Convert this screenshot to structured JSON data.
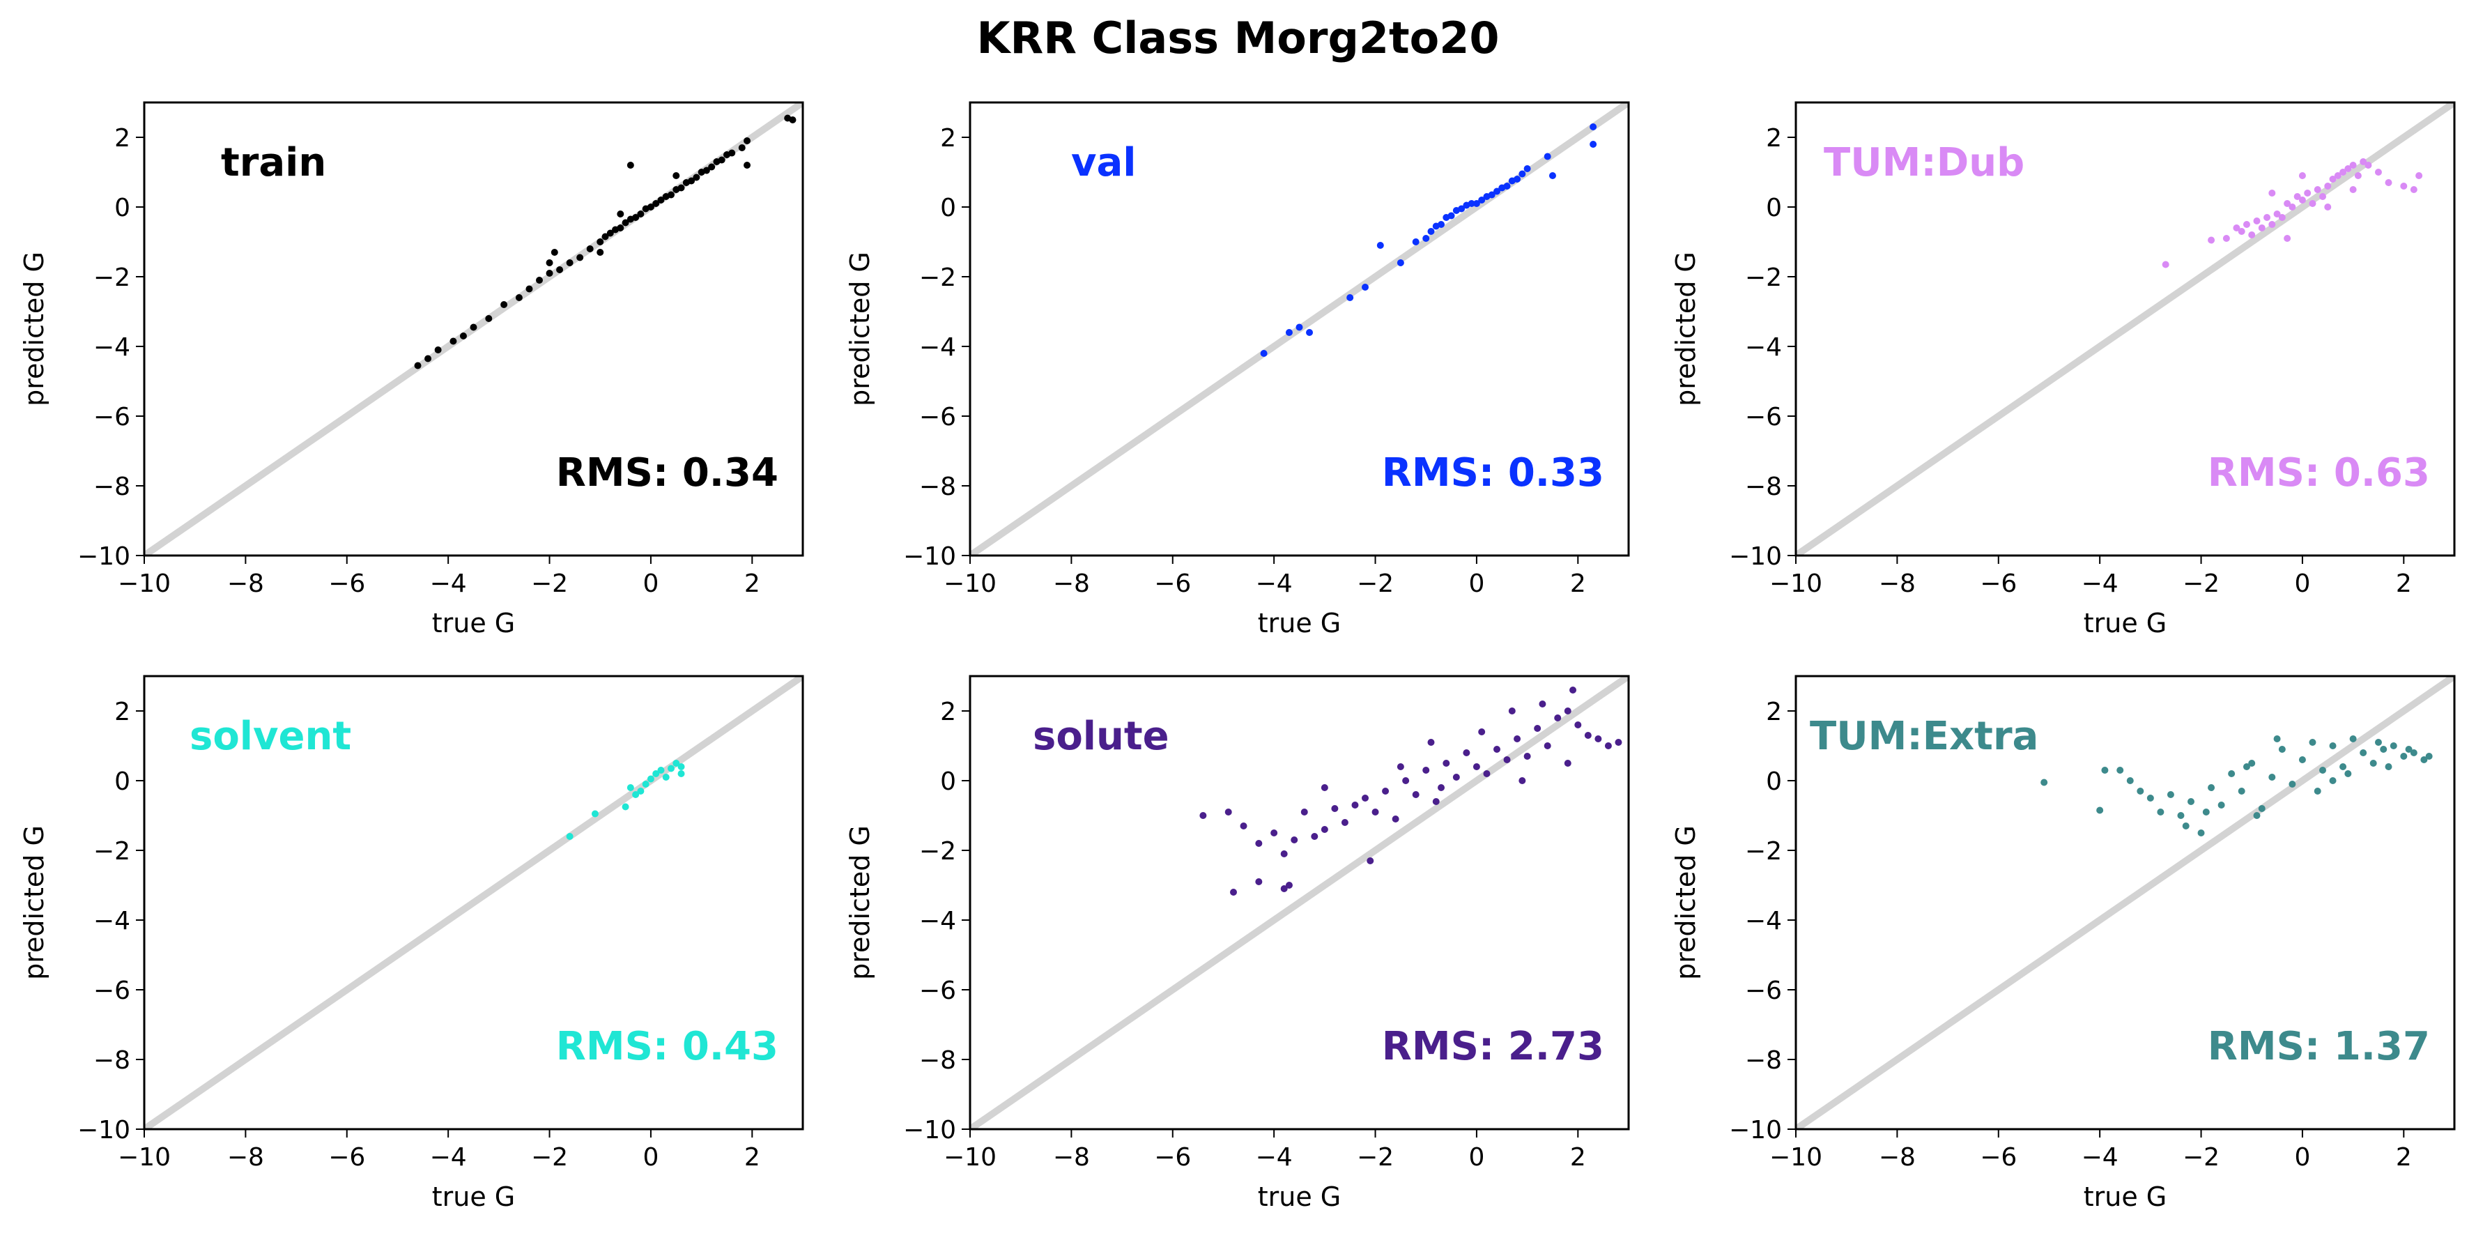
{
  "figure": {
    "title": "KRR Class Morg2to20"
  },
  "chart_data": [
    {
      "type": "scatter",
      "panel": "train",
      "color": "#000000",
      "rms": "RMS: 0.34",
      "xlabel": "true G",
      "ylabel": "predicted G",
      "xlim": [
        -10,
        3
      ],
      "ylim": [
        -10,
        3
      ],
      "x_ticks": [
        -10,
        -8,
        -6,
        -4,
        -2,
        0,
        2
      ],
      "y_ticks": [
        -10,
        -8,
        -6,
        -4,
        -2,
        0,
        2
      ],
      "reference_line": "y = x",
      "x": [
        -4.6,
        -4.4,
        -4.2,
        -3.9,
        -3.7,
        -3.5,
        -3.2,
        -2.9,
        -2.6,
        -2.4,
        -2.2,
        -2.0,
        -1.8,
        -1.6,
        -1.4,
        -1.2,
        -1.0,
        -0.9,
        -0.8,
        -0.7,
        -0.6,
        -0.5,
        -0.4,
        -0.3,
        -0.2,
        -0.1,
        0.0,
        0.1,
        0.2,
        0.3,
        0.4,
        0.5,
        0.6,
        0.7,
        0.8,
        0.9,
        1.0,
        1.1,
        1.2,
        1.3,
        1.4,
        1.5,
        1.6,
        1.8,
        1.9,
        -1.9,
        -0.4,
        0.5,
        -0.6,
        2.7,
        2.8,
        -1.0,
        1.9,
        -2.0
      ],
      "y": [
        -4.55,
        -4.35,
        -4.1,
        -3.85,
        -3.7,
        -3.45,
        -3.2,
        -2.8,
        -2.6,
        -2.35,
        -2.1,
        -1.9,
        -1.8,
        -1.6,
        -1.45,
        -1.2,
        -1.0,
        -0.85,
        -0.75,
        -0.65,
        -0.6,
        -0.45,
        -0.35,
        -0.3,
        -0.2,
        -0.05,
        0.0,
        0.1,
        0.2,
        0.3,
        0.35,
        0.5,
        0.55,
        0.7,
        0.75,
        0.85,
        1.0,
        1.05,
        1.15,
        1.3,
        1.35,
        1.5,
        1.55,
        1.7,
        1.9,
        -1.3,
        1.2,
        0.9,
        -0.2,
        2.55,
        2.5,
        -1.3,
        1.2,
        -1.6
      ]
    },
    {
      "type": "scatter",
      "panel": "val",
      "color": "#0a32ff",
      "rms": "RMS: 0.33",
      "xlabel": "true G",
      "ylabel": "predicted G",
      "xlim": [
        -10,
        3
      ],
      "ylim": [
        -10,
        3
      ],
      "x_ticks": [
        -10,
        -8,
        -6,
        -4,
        -2,
        0,
        2
      ],
      "y_ticks": [
        -10,
        -8,
        -6,
        -4,
        -2,
        0,
        2
      ],
      "reference_line": "y = x",
      "x": [
        -4.2,
        -3.7,
        -3.5,
        -3.3,
        -2.5,
        -2.2,
        -1.9,
        -1.5,
        -1.2,
        -1.0,
        -0.9,
        -0.8,
        -0.7,
        -0.6,
        -0.5,
        -0.4,
        -0.3,
        -0.2,
        -0.1,
        0.0,
        0.1,
        0.2,
        0.3,
        0.4,
        0.5,
        0.6,
        0.7,
        0.8,
        0.9,
        1.0,
        1.4,
        1.5,
        2.3,
        2.3
      ],
      "y": [
        -4.2,
        -3.6,
        -3.45,
        -3.6,
        -2.6,
        -2.3,
        -1.1,
        -1.6,
        -1.0,
        -0.9,
        -0.7,
        -0.55,
        -0.5,
        -0.3,
        -0.25,
        -0.1,
        -0.05,
        0.05,
        0.1,
        0.1,
        0.2,
        0.3,
        0.35,
        0.45,
        0.55,
        0.6,
        0.75,
        0.8,
        0.95,
        1.1,
        1.45,
        0.9,
        2.3,
        1.8
      ]
    },
    {
      "type": "scatter",
      "panel": "TUM:Dub",
      "color": "#d98af5",
      "rms": "RMS: 0.63",
      "xlabel": "true G",
      "ylabel": "predicted G",
      "xlim": [
        -10,
        3
      ],
      "ylim": [
        -10,
        3
      ],
      "x_ticks": [
        -10,
        -8,
        -6,
        -4,
        -2,
        0,
        2
      ],
      "y_ticks": [
        -10,
        -8,
        -6,
        -4,
        -2,
        0,
        2
      ],
      "reference_line": "y = x",
      "x": [
        -2.7,
        -1.8,
        -1.5,
        -1.3,
        -1.2,
        -1.1,
        -1.0,
        -0.9,
        -0.8,
        -0.7,
        -0.6,
        -0.5,
        -0.4,
        -0.3,
        -0.2,
        -0.1,
        0.0,
        0.1,
        0.2,
        0.3,
        0.4,
        0.5,
        0.6,
        0.7,
        0.8,
        0.9,
        1.0,
        1.1,
        1.2,
        1.3,
        1.5,
        1.7,
        2.0,
        2.2,
        2.3,
        -0.6,
        0.0,
        0.5,
        1.0,
        -0.3
      ],
      "y": [
        -1.65,
        -0.95,
        -0.9,
        -0.6,
        -0.7,
        -0.5,
        -0.8,
        -0.4,
        -0.6,
        -0.3,
        -0.5,
        -0.2,
        -0.3,
        0.1,
        0.0,
        0.3,
        0.2,
        0.4,
        0.1,
        0.5,
        0.3,
        0.6,
        0.8,
        0.9,
        1.0,
        1.1,
        1.2,
        0.9,
        1.3,
        1.2,
        1.0,
        0.7,
        0.6,
        0.5,
        0.9,
        0.4,
        0.9,
        0.0,
        0.5,
        -0.9
      ]
    },
    {
      "type": "scatter",
      "panel": "solvent",
      "color": "#1fe6d4",
      "rms": "RMS: 0.43",
      "xlabel": "true G",
      "ylabel": "predicted G",
      "xlim": [
        -10,
        3
      ],
      "ylim": [
        -10,
        3
      ],
      "x_ticks": [
        -10,
        -8,
        -6,
        -4,
        -2,
        0,
        2
      ],
      "y_ticks": [
        -10,
        -8,
        -6,
        -4,
        -2,
        0,
        2
      ],
      "reference_line": "y = x",
      "x": [
        -1.6,
        -1.1,
        -0.5,
        -0.3,
        -0.2,
        -0.1,
        0.0,
        0.1,
        0.2,
        0.3,
        0.4,
        0.5,
        0.6,
        0.6,
        -0.4
      ],
      "y": [
        -1.6,
        -0.95,
        -0.75,
        -0.4,
        -0.3,
        -0.1,
        0.05,
        0.2,
        0.3,
        0.1,
        0.35,
        0.5,
        0.4,
        0.2,
        -0.2
      ]
    },
    {
      "type": "scatter",
      "panel": "solute",
      "color": "#4a1f8c",
      "rms": "RMS: 2.73",
      "xlabel": "true G",
      "ylabel": "predicted G",
      "xlim": [
        -10,
        3
      ],
      "ylim": [
        -10,
        3
      ],
      "x_ticks": [
        -10,
        -8,
        -6,
        -4,
        -2,
        0,
        2
      ],
      "y_ticks": [
        -10,
        -8,
        -6,
        -4,
        -2,
        0,
        2
      ],
      "reference_line": "y = x",
      "x": [
        -5.4,
        -4.9,
        -4.8,
        -4.6,
        -4.3,
        -4.0,
        -3.8,
        -3.7,
        -3.6,
        -3.4,
        -3.2,
        -3.0,
        -2.8,
        -2.6,
        -2.4,
        -2.2,
        -2.0,
        -1.8,
        -1.6,
        -1.4,
        -1.2,
        -1.0,
        -0.8,
        -0.6,
        -0.4,
        -0.2,
        0.0,
        0.2,
        0.4,
        0.6,
        0.8,
        1.0,
        1.2,
        1.4,
        1.6,
        1.8,
        2.0,
        2.2,
        2.4,
        2.6,
        2.8,
        -3.0,
        -2.1,
        -1.5,
        -0.9,
        0.1,
        0.7,
        1.3,
        1.9,
        -4.3,
        -3.8,
        -0.7,
        0.9,
        1.8
      ],
      "y": [
        -1.0,
        -0.9,
        -3.2,
        -1.3,
        -1.8,
        -1.5,
        -2.1,
        -3.0,
        -1.7,
        -0.9,
        -1.6,
        -1.4,
        -0.8,
        -1.2,
        -0.7,
        -0.5,
        -0.9,
        -0.3,
        -1.1,
        0.0,
        -0.4,
        0.3,
        -0.6,
        0.5,
        0.1,
        0.8,
        0.4,
        0.2,
        0.9,
        0.6,
        1.2,
        0.7,
        1.5,
        1.0,
        1.8,
        2.0,
        1.6,
        1.3,
        1.2,
        1.0,
        1.1,
        -0.2,
        -2.3,
        0.4,
        1.1,
        1.4,
        2.0,
        2.2,
        2.6,
        -2.9,
        -3.1,
        -0.2,
        0.0,
        0.5
      ]
    },
    {
      "type": "scatter",
      "panel": "TUM:Extra",
      "color": "#3d8a8c",
      "rms": "RMS: 1.37",
      "xlabel": "true G",
      "ylabel": "predicted G",
      "xlim": [
        -10,
        3
      ],
      "ylim": [
        -10,
        3
      ],
      "x_ticks": [
        -10,
        -8,
        -6,
        -4,
        -2,
        0,
        2
      ],
      "y_ticks": [
        -10,
        -8,
        -6,
        -4,
        -2,
        0,
        2
      ],
      "reference_line": "y = x",
      "x": [
        -5.1,
        -4.0,
        -3.9,
        -3.6,
        -3.4,
        -3.2,
        -3.0,
        -2.8,
        -2.6,
        -2.4,
        -2.2,
        -2.0,
        -1.8,
        -1.6,
        -1.4,
        -1.2,
        -1.0,
        -0.8,
        -0.6,
        -0.4,
        -0.2,
        0.0,
        0.2,
        0.4,
        0.6,
        0.8,
        1.0,
        1.2,
        1.4,
        1.6,
        1.8,
        2.0,
        2.2,
        2.4,
        2.5,
        -1.9,
        -1.1,
        -0.5,
        0.3,
        0.9,
        1.5,
        2.1,
        -2.3,
        -0.9,
        0.6,
        1.7
      ],
      "y": [
        -0.05,
        -0.85,
        0.3,
        0.3,
        0.0,
        -0.3,
        -0.5,
        -0.9,
        -0.4,
        -1.0,
        -0.6,
        -1.5,
        -0.2,
        -0.7,
        0.2,
        -0.3,
        0.5,
        -0.8,
        0.1,
        0.9,
        -0.1,
        0.6,
        1.1,
        0.3,
        1.0,
        0.4,
        1.2,
        0.8,
        0.5,
        0.9,
        1.0,
        0.7,
        0.8,
        0.6,
        0.7,
        -0.9,
        0.4,
        1.2,
        -0.3,
        0.2,
        1.1,
        0.9,
        -1.3,
        -1.0,
        0.0,
        0.4
      ]
    }
  ]
}
